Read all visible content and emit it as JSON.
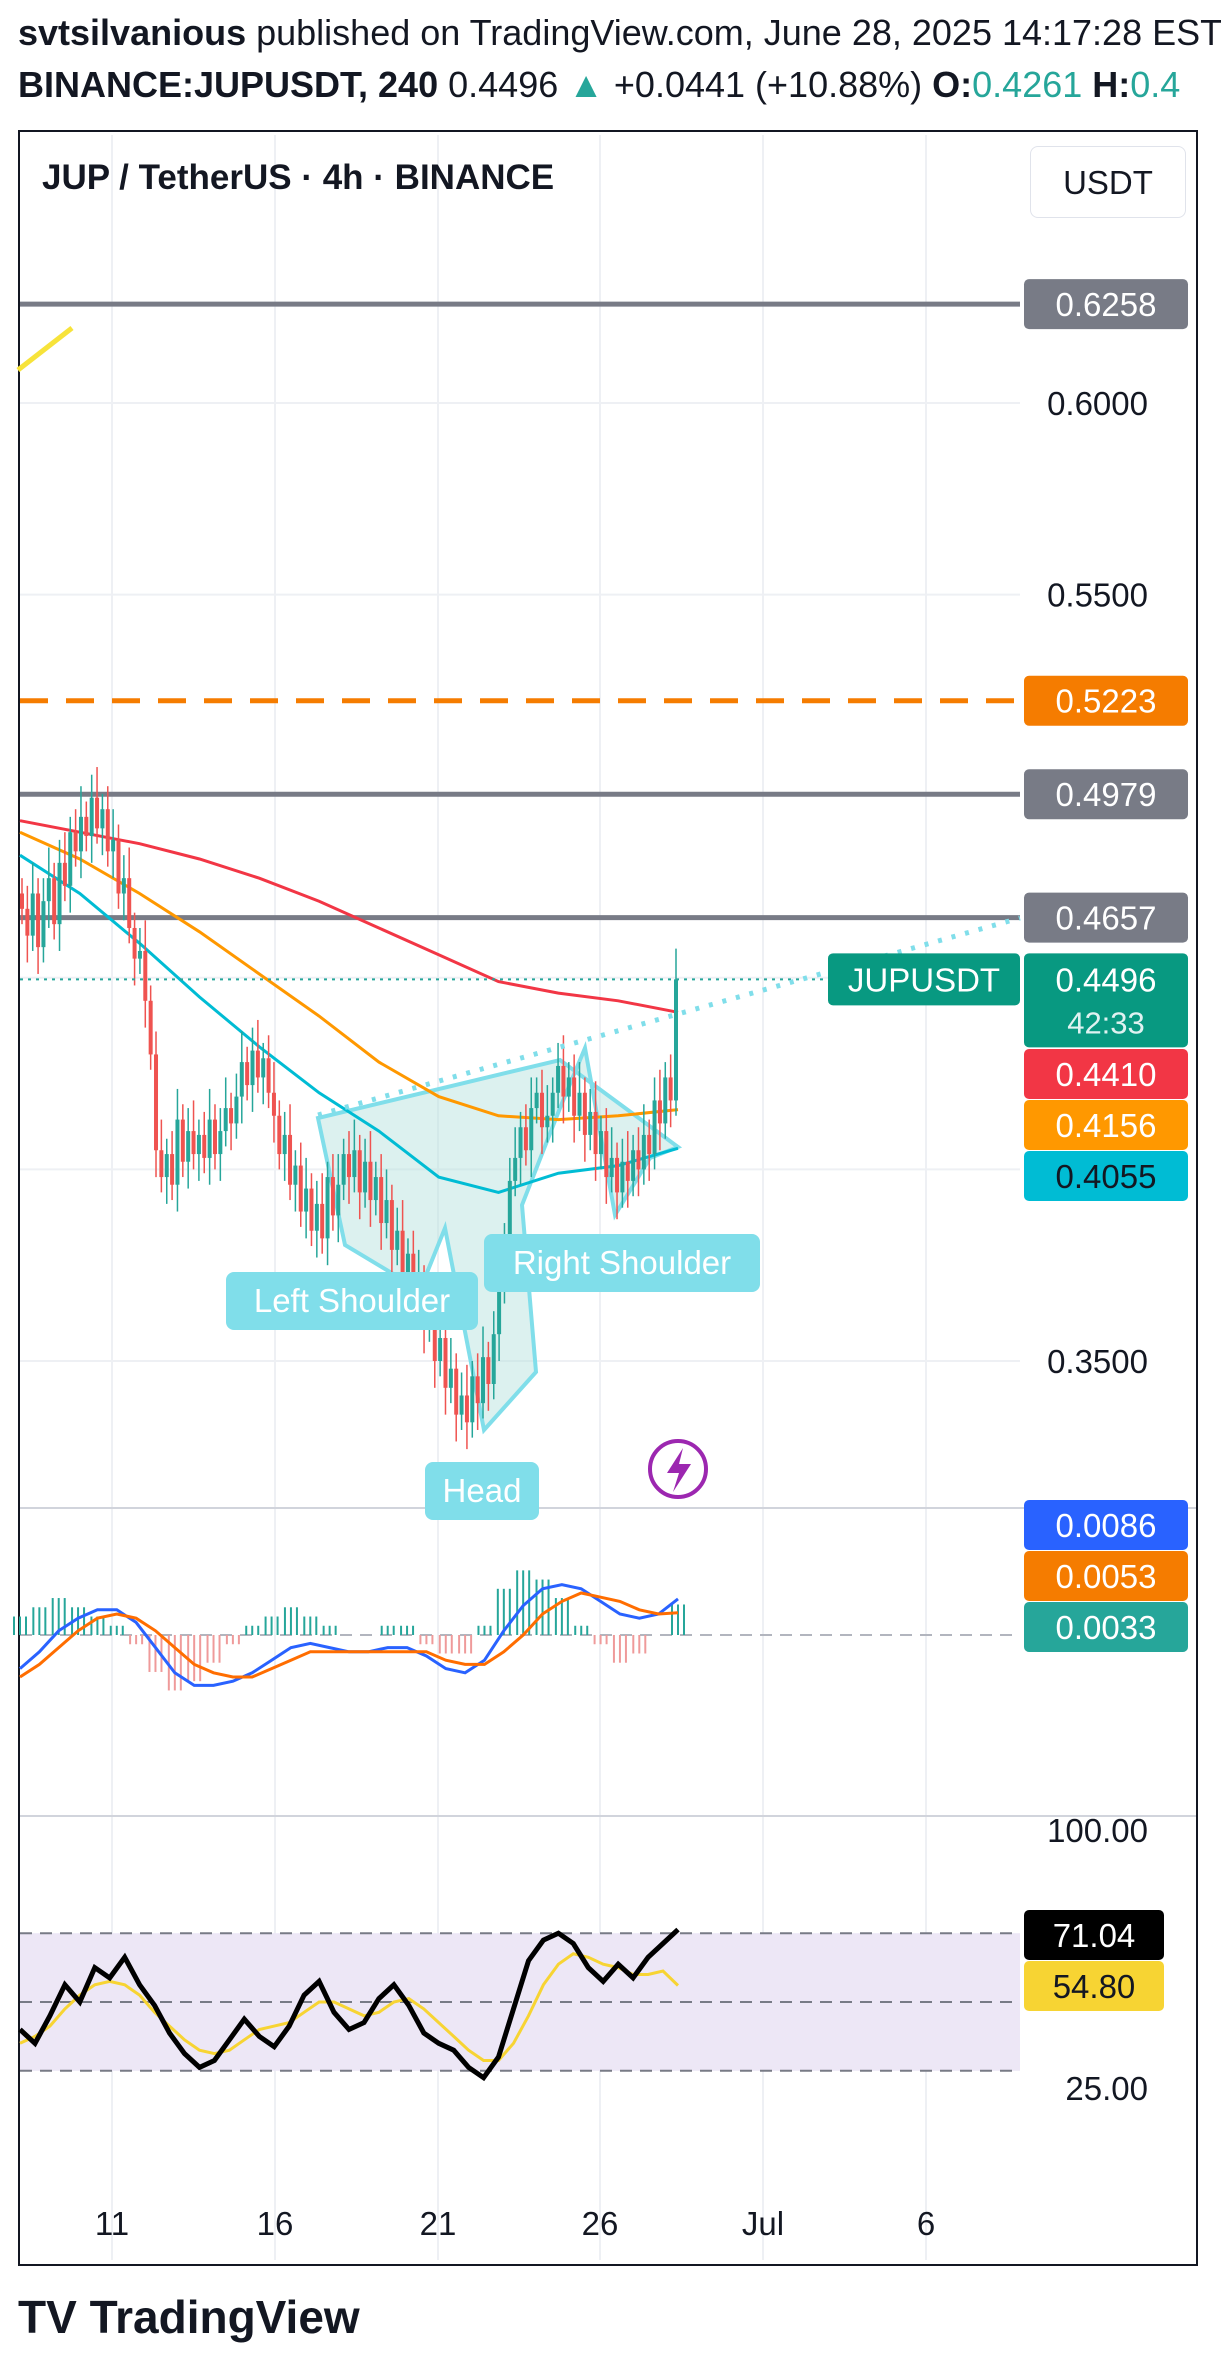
{
  "header": {
    "author": "svtsilvanious",
    "published": "published on TradingView.com, June 28, 2025 14:17:28 EST",
    "symbol": "BINANCE:JUPUSDT, 240",
    "last": "0.4496",
    "change": "+0.0441 (+10.88%)",
    "open_label": "O:",
    "open": "0.4261",
    "high_label": "H:",
    "high": "0.4"
  },
  "chart_title": "JUP / TetherUS · 4h · BINANCE",
  "currency_button": "USDT",
  "footer_logo": "TradingView",
  "colors": {
    "up": "#26a69a",
    "down": "#ef5350",
    "ema_red": "#f23645",
    "ema_orange": "#ff9800",
    "ema_cyan": "#00bcd4",
    "level": "#787b86",
    "resistance_orange": "#f57c00",
    "pattern_fill": "#b2dfdb",
    "neckline": "#80deea",
    "macd": "#2962ff",
    "signal": "#ff6d00",
    "rsi": "#000000",
    "rsi_ma": "#f7d433",
    "rsi_band": "#ede7f6"
  },
  "chart_data": [
    {
      "type": "candlestick",
      "title": "JUP / TetherUS · 4h · BINANCE",
      "x_ticks": [
        "11",
        "16",
        "21",
        "26",
        "Jul",
        "6"
      ],
      "y_ticks": [
        "0.6000",
        "0.5500",
        "0.3500"
      ],
      "ylim": [
        0.31,
        0.655
      ],
      "grid": true,
      "horizontal_levels": [
        {
          "value": 0.6258,
          "label": "0.6258",
          "style": "solid",
          "color": "#787b86"
        },
        {
          "value": 0.5223,
          "label": "0.5223",
          "style": "dashed",
          "color": "#f57c00"
        },
        {
          "value": 0.4979,
          "label": "0.4979",
          "style": "solid",
          "color": "#787b86"
        },
        {
          "value": 0.4657,
          "label": "0.4657",
          "style": "solid",
          "color": "#787b86"
        }
      ],
      "price_label": {
        "symbol": "JUPUSDT",
        "value": "0.4496",
        "countdown": "42:33"
      },
      "ema_labels": [
        {
          "value": "0.4410",
          "color": "#f23645"
        },
        {
          "value": "0.4156",
          "color": "#ff9800"
        },
        {
          "value": "0.4055",
          "color": "#00bcd4"
        }
      ],
      "pattern_labels": {
        "left": "Left Shoulder",
        "head": "Head",
        "right": "Right Shoulder"
      },
      "candles_close": [
        0.468,
        0.461,
        0.472,
        0.458,
        0.47,
        0.476,
        0.464,
        0.48,
        0.474,
        0.488,
        0.483,
        0.492,
        0.487,
        0.497,
        0.489,
        0.494,
        0.483,
        0.486,
        0.472,
        0.476,
        0.463,
        0.455,
        0.457,
        0.444,
        0.43,
        0.405,
        0.398,
        0.404,
        0.396,
        0.413,
        0.402,
        0.41,
        0.404,
        0.409,
        0.403,
        0.413,
        0.404,
        0.41,
        0.416,
        0.412,
        0.419,
        0.428,
        0.422,
        0.431,
        0.424,
        0.429,
        0.42,
        0.414,
        0.404,
        0.409,
        0.396,
        0.401,
        0.389,
        0.395,
        0.384,
        0.391,
        0.382,
        0.398,
        0.388,
        0.396,
        0.404,
        0.398,
        0.405,
        0.394,
        0.402,
        0.392,
        0.398,
        0.386,
        0.392,
        0.379,
        0.384,
        0.373,
        0.378,
        0.366,
        0.371,
        0.359,
        0.364,
        0.35,
        0.356,
        0.343,
        0.348,
        0.336,
        0.341,
        0.334,
        0.346,
        0.339,
        0.351,
        0.344,
        0.357,
        0.369,
        0.382,
        0.397,
        0.403,
        0.411,
        0.405,
        0.416,
        0.42,
        0.411,
        0.414,
        0.42,
        0.427,
        0.419,
        0.424,
        0.414,
        0.42,
        0.409,
        0.415,
        0.404,
        0.41,
        0.398,
        0.403,
        0.394,
        0.402,
        0.397,
        0.405,
        0.4,
        0.409,
        0.404,
        0.418,
        0.412,
        0.424,
        0.418,
        0.4496
      ],
      "ema_red": [
        0.491,
        0.488,
        0.485,
        0.481,
        0.476,
        0.47,
        0.463,
        0.456,
        0.449,
        0.446,
        0.444,
        0.441
      ],
      "ema_orange": [
        0.488,
        0.481,
        0.472,
        0.462,
        0.451,
        0.44,
        0.428,
        0.419,
        0.414,
        0.413,
        0.414,
        0.4156
      ],
      "ema_cyan": [
        0.482,
        0.472,
        0.459,
        0.445,
        0.432,
        0.42,
        0.41,
        0.398,
        0.394,
        0.399,
        0.401,
        0.4055
      ]
    },
    {
      "type": "line",
      "title": "MACD",
      "series": [
        {
          "name": "",
          "values_label": "0.0086",
          "color": "#2962ff",
          "values": [
            -0.008,
            -0.004,
            0.001,
            0.004,
            0.006,
            0.006,
            0.003,
            -0.003,
            -0.009,
            -0.012,
            -0.012,
            -0.011,
            -0.009,
            -0.006,
            -0.003,
            -0.002,
            -0.003,
            -0.004,
            -0.004,
            -0.003,
            -0.003,
            -0.005,
            -0.008,
            -0.009,
            -0.006,
            0.001,
            0.007,
            0.011,
            0.012,
            0.011,
            0.008,
            0.005,
            0.004,
            0.005,
            0.0086
          ]
        },
        {
          "name": "",
          "values_label": "0.0053",
          "color": "#ff6d00",
          "values": [
            -0.01,
            -0.007,
            -0.003,
            0.001,
            0.004,
            0.005,
            0.004,
            0.001,
            -0.003,
            -0.007,
            -0.009,
            -0.01,
            -0.01,
            -0.008,
            -0.006,
            -0.004,
            -0.004,
            -0.004,
            -0.004,
            -0.004,
            -0.004,
            -0.004,
            -0.006,
            -0.007,
            -0.007,
            -0.004,
            0.0,
            0.005,
            0.008,
            0.01,
            0.009,
            0.008,
            0.006,
            0.005,
            0.0053
          ]
        }
      ],
      "histogram_label": "0.0033"
    },
    {
      "type": "line",
      "title": "RSI",
      "y_ticks": [
        "100.00",
        "25.00"
      ],
      "ylim": [
        0,
        100
      ],
      "bands": [
        30,
        50,
        70
      ],
      "series": [
        {
          "name": "",
          "values_label": "71.04",
          "color": "#000000",
          "values": [
            42,
            38,
            46,
            55,
            50,
            60,
            57,
            63,
            55,
            49,
            41,
            35,
            31,
            33,
            39,
            45,
            40,
            37,
            43,
            52,
            56,
            47,
            42,
            44,
            51,
            55,
            49,
            41,
            38,
            36,
            31,
            28,
            34,
            48,
            62,
            68,
            70,
            67,
            60,
            56,
            61,
            57,
            63,
            67,
            71.04
          ]
        },
        {
          "name": "",
          "values_label": "54.80",
          "color": "#f7d433",
          "values": [
            38,
            40,
            43,
            48,
            52,
            55,
            56,
            55,
            52,
            47,
            43,
            39,
            36,
            35,
            36,
            39,
            42,
            43,
            44,
            47,
            50,
            50,
            48,
            46,
            47,
            50,
            51,
            48,
            44,
            40,
            36,
            33,
            33,
            38,
            46,
            55,
            61,
            64,
            63,
            61,
            60,
            58,
            58,
            59,
            54.8
          ]
        }
      ]
    }
  ]
}
